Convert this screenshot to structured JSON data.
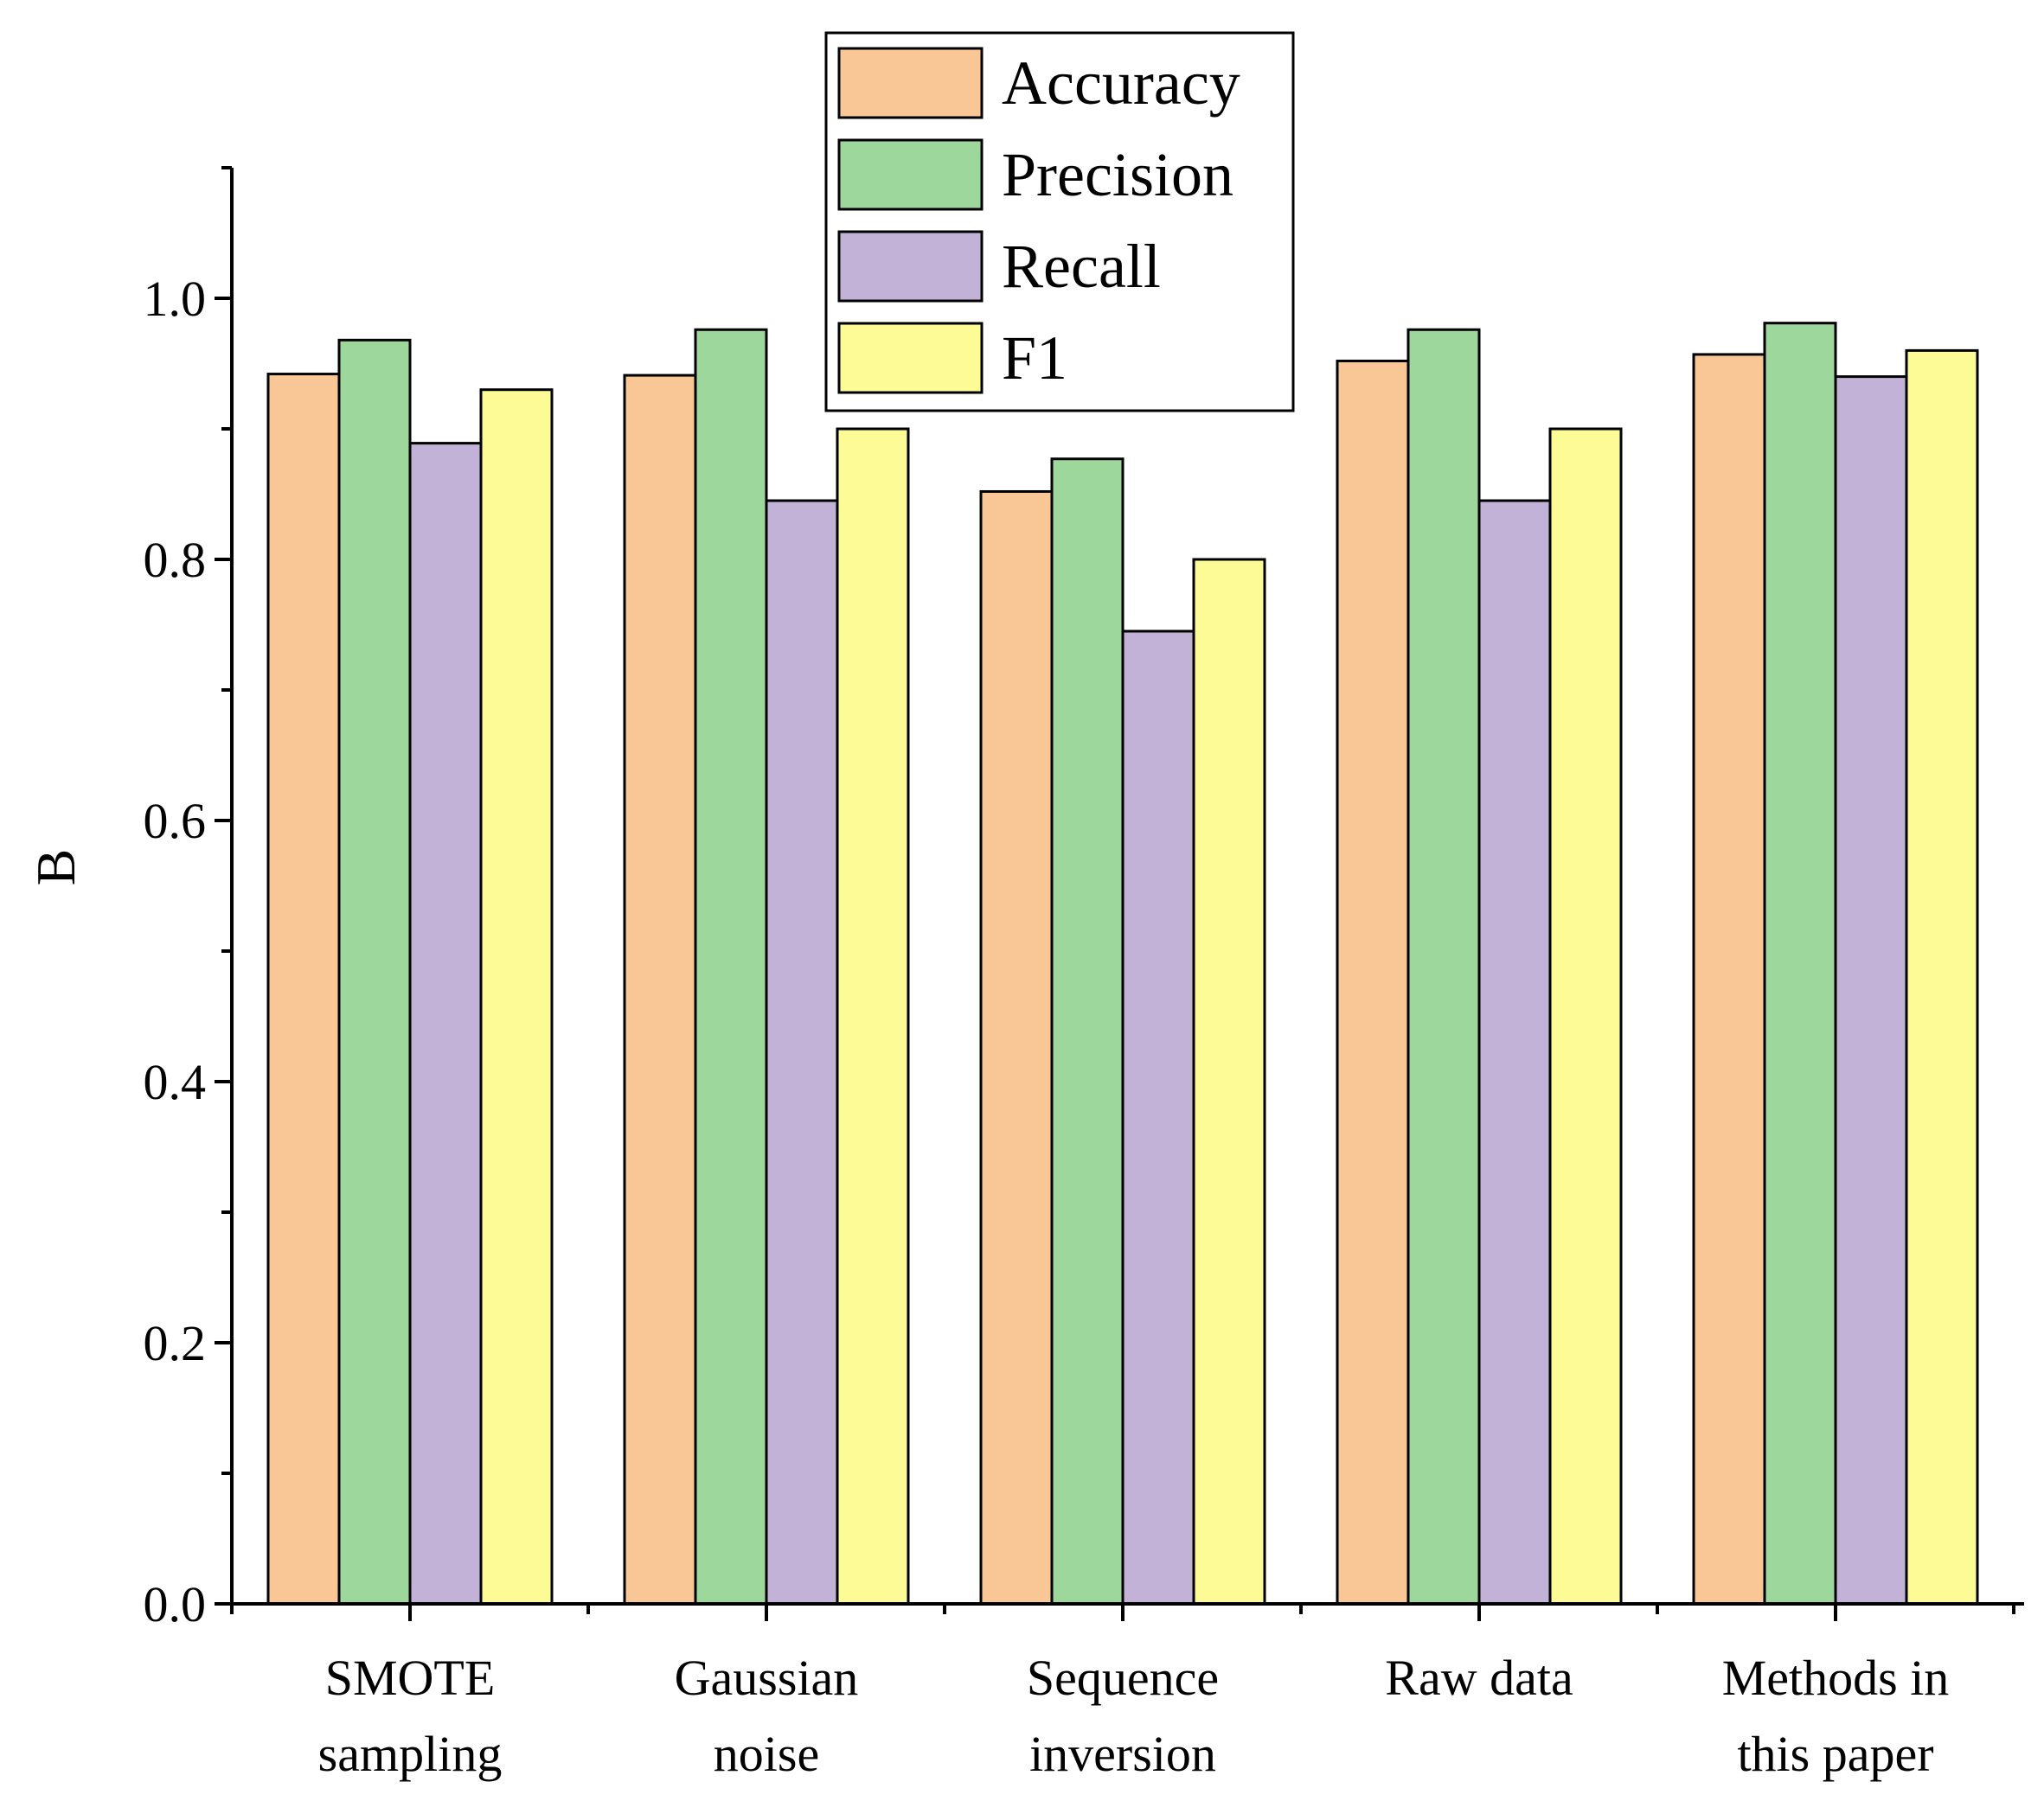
{
  "chart_data": {
    "type": "bar",
    "title": "",
    "xlabel": "",
    "ylabel": "B",
    "ylim": [
      0,
      1.1
    ],
    "yticks": [
      0.0,
      0.2,
      0.4,
      0.6,
      0.8,
      1.0
    ],
    "ytick_labels": [
      "0.0",
      "0.2",
      "0.4",
      "0.6",
      "0.8",
      "1.0"
    ],
    "grid": false,
    "legend_position": "top-center",
    "categories": [
      [
        "SMOTE",
        "sampling"
      ],
      [
        "Gaussian",
        "noise"
      ],
      [
        "Sequence",
        "inversion"
      ],
      [
        "Raw data"
      ],
      [
        "Methods in",
        "this paper"
      ]
    ],
    "series": [
      {
        "name": "Accuracy",
        "color": "#F9C796",
        "values": [
          0.942,
          0.941,
          0.852,
          0.952,
          0.957
        ]
      },
      {
        "name": "Precision",
        "color": "#9ED79B",
        "values": [
          0.968,
          0.976,
          0.877,
          0.976,
          0.981
        ]
      },
      {
        "name": "Recall",
        "color": "#C3B2D7",
        "values": [
          0.889,
          0.845,
          0.745,
          0.845,
          0.94
        ]
      },
      {
        "name": "F1",
        "color": "#FDFB96",
        "values": [
          0.93,
          0.9,
          0.8,
          0.9,
          0.96
        ]
      }
    ]
  }
}
